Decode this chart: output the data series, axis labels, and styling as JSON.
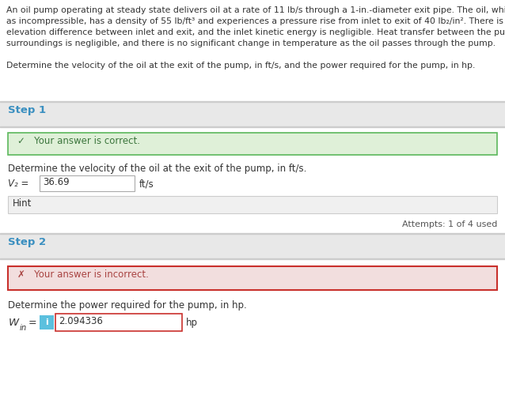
{
  "white": "#ffffff",
  "problem_line1": "An oil pump operating at steady state delivers oil at a rate of 11 lb/s through a 1-in.-diameter exit pipe. The oil, which can be modeled",
  "problem_line2": "as incompressible, has a density of 55 lb/ft³ and experiences a pressure rise from inlet to exit of 40 lb₂/in². There is no significant",
  "problem_line3": "elevation difference between inlet and exit, and the inlet kinetic energy is negligible. Heat transfer between the pump and its",
  "problem_line4": "surroundings is negligible, and there is no significant change in temperature as the oil passes through the pump.",
  "determine_text": "Determine the velocity of the oil at the exit of the pump, in ft/s, and the power required for the pump, in hp.",
  "step1_label": "Step 1",
  "step1_color": "#3a8fc0",
  "step1_correct_bg": "#dff0d8",
  "step1_correct_border": "#5cb85c",
  "step1_correct_text": "✓   Your answer is correct.",
  "step1_correct_text_color": "#3c763d",
  "step1_question": "Determine the velocity of the oil at the exit of the pump, in ft/s.",
  "step1_value": "36.69",
  "step1_unit": "ft/s",
  "hint_text": "Hint",
  "attempts_text": "Attempts: 1 of 4 used",
  "step2_label": "Step 2",
  "step2_color": "#3a8fc0",
  "step2_incorrect_bg": "#f2dede",
  "step2_incorrect_border": "#c9302c",
  "step2_incorrect_text": "✗   Your answer is incorrect.",
  "step2_incorrect_text_color": "#a94442",
  "step2_question": "Determine the power required for the pump, in hp.",
  "step2_value": "2.094336",
  "step2_unit": "hp",
  "info_icon_color": "#5bc0de",
  "divider_color": "#cccccc",
  "step_header_bg": "#e8e8e8",
  "step_body_bg": "#ffffff",
  "outer_bg": "#f5f5f5",
  "hint_bg": "#f0f0f0",
  "hint_border": "#cccccc",
  "input_border": "#aaaaaa",
  "text_color": "#333333",
  "attempts_color": "#555555"
}
